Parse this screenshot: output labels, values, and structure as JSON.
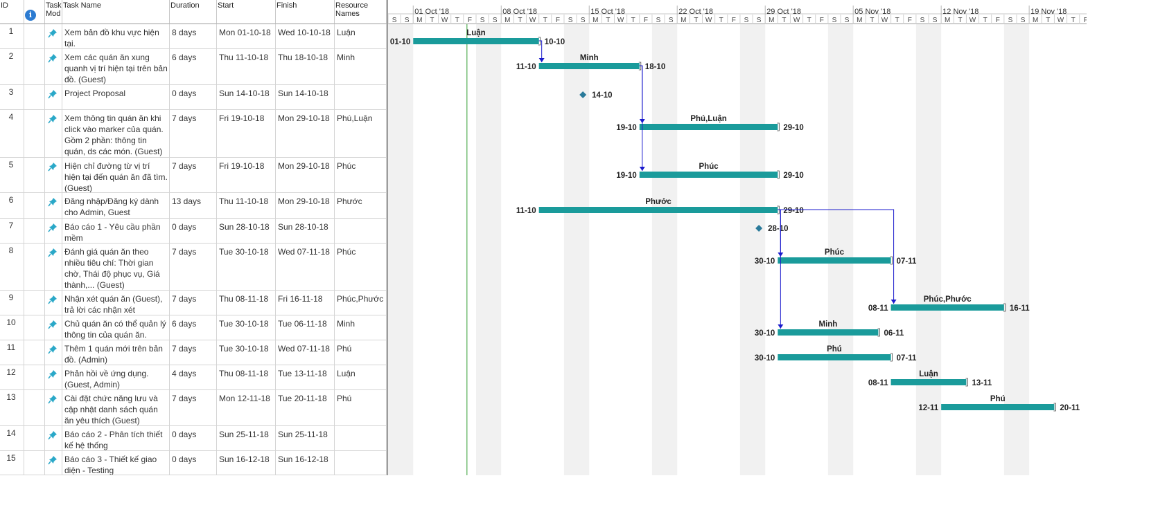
{
  "columns": {
    "id": "ID",
    "task_mode": "Task Mod",
    "task_name": "Task Name",
    "duration": "Duration",
    "start": "Start",
    "finish": "Finish",
    "resource_names": "Resource Names"
  },
  "timeline": {
    "weeks": [
      "01 Oct '18",
      "08 Oct '18",
      "15 Oct '18",
      "22 Oct '18",
      "29 Oct '18",
      "05 Nov '18",
      "12 Nov '18",
      "19 Nov '18"
    ],
    "day_letters": [
      "S",
      "S",
      "M",
      "T",
      "W",
      "T",
      "F",
      "S",
      "S",
      "M",
      "T",
      "W",
      "T",
      "F",
      "S",
      "S",
      "M",
      "T",
      "W",
      "T",
      "F",
      "S",
      "S",
      "M",
      "T",
      "W",
      "T",
      "F",
      "S",
      "S",
      "M",
      "T",
      "W",
      "T",
      "F",
      "S",
      "S",
      "M",
      "T",
      "W",
      "T",
      "F",
      "S",
      "S",
      "M",
      "T",
      "W",
      "T",
      "F",
      "S",
      "S",
      "M",
      "T",
      "W",
      "T",
      "F"
    ]
  },
  "tasks": [
    {
      "id": "1",
      "name": "Xem bản đồ khu vực hiện tại.",
      "duration": "8 days",
      "start": "Mon 01-10-18",
      "finish": "Wed 10-10-18",
      "resources": "Luận",
      "type": "bar",
      "bar_start": "2018-10-01",
      "bar_end": "2018-10-10",
      "label_start": "01-10",
      "label_end": "10-10"
    },
    {
      "id": "2",
      "name": "Xem các quán ăn xung quanh vị trí hiện tại trên bản đồ. (Guest)",
      "duration": "6 days",
      "start": "Thu 11-10-18",
      "finish": "Thu 18-10-18",
      "resources": "Minh",
      "type": "bar",
      "bar_start": "2018-10-11",
      "bar_end": "2018-10-18",
      "label_start": "11-10",
      "label_end": "18-10"
    },
    {
      "id": "3",
      "name": "Project Proposal",
      "duration": "0 days",
      "start": "Sun 14-10-18",
      "finish": "Sun 14-10-18",
      "resources": "",
      "type": "milestone",
      "bar_start": "2018-10-14",
      "bar_end": "2018-10-14",
      "label_start": "",
      "label_end": "14-10"
    },
    {
      "id": "4",
      "name": "Xem thông tin quán ăn khi click vào marker của quán. Gồm 2 phần: thông tin quán, ds các món. (Guest)",
      "duration": "7 days",
      "start": "Fri 19-10-18",
      "finish": "Mon 29-10-18",
      "resources": "Phú,Luận",
      "type": "bar",
      "bar_start": "2018-10-19",
      "bar_end": "2018-10-29",
      "label_start": "19-10",
      "label_end": "29-10"
    },
    {
      "id": "5",
      "name": "Hiện chỉ đường từ vị trí hiện tại đến quán ăn đã tìm. (Guest)",
      "duration": "7 days",
      "start": "Fri 19-10-18",
      "finish": "Mon 29-10-18",
      "resources": "Phúc",
      "type": "bar",
      "bar_start": "2018-10-19",
      "bar_end": "2018-10-29",
      "label_start": "19-10",
      "label_end": "29-10"
    },
    {
      "id": "6",
      "name": "Đăng nhập/Đăng ký dành cho Admin, Guest",
      "duration": "13 days",
      "start": "Thu 11-10-18",
      "finish": "Mon 29-10-18",
      "resources": "Phước",
      "type": "bar",
      "bar_start": "2018-10-11",
      "bar_end": "2018-10-29",
      "label_start": "11-10",
      "label_end": "29-10"
    },
    {
      "id": "7",
      "name": "Báo cáo 1 - Yêu cầu phần mềm",
      "duration": "0 days",
      "start": "Sun 28-10-18",
      "finish": "Sun 28-10-18",
      "resources": "",
      "type": "milestone",
      "bar_start": "2018-10-28",
      "bar_end": "2018-10-28",
      "label_start": "",
      "label_end": "28-10"
    },
    {
      "id": "8",
      "name": "Đánh giá quán ăn theo nhiều tiêu chí: Thời gian chờ, Thái độ phục vụ, Giá thành,... (Guest)",
      "duration": "7 days",
      "start": "Tue 30-10-18",
      "finish": "Wed 07-11-18",
      "resources": "Phúc",
      "type": "bar",
      "bar_start": "2018-10-30",
      "bar_end": "2018-11-07",
      "label_start": "30-10",
      "label_end": "07-11"
    },
    {
      "id": "9",
      "name": "Nhận xét quán ăn (Guest), trả lời các nhận xét",
      "duration": "7 days",
      "start": "Thu 08-11-18",
      "finish": "Fri 16-11-18",
      "resources": "Phúc,Phước",
      "type": "bar",
      "bar_start": "2018-11-08",
      "bar_end": "2018-11-16",
      "label_start": "08-11",
      "label_end": "16-11"
    },
    {
      "id": "10",
      "name": "Chủ quán ăn có thể quản lý thông tin của quán ăn.",
      "duration": "6 days",
      "start": "Tue 30-10-18",
      "finish": "Tue 06-11-18",
      "resources": "Minh",
      "type": "bar",
      "bar_start": "2018-10-30",
      "bar_end": "2018-11-06",
      "label_start": "30-10",
      "label_end": "06-11"
    },
    {
      "id": "11",
      "name": "Thêm 1 quán mới trên bản đồ. (Admin)",
      "duration": "7 days",
      "start": "Tue 30-10-18",
      "finish": "Wed 07-11-18",
      "resources": "Phú",
      "type": "bar",
      "bar_start": "2018-10-30",
      "bar_end": "2018-11-07",
      "label_start": "30-10",
      "label_end": "07-11"
    },
    {
      "id": "12",
      "name": "Phản hồi về ứng dụng. (Guest, Admin)",
      "duration": "4 days",
      "start": "Thu 08-11-18",
      "finish": "Tue 13-11-18",
      "resources": "Luận",
      "type": "bar",
      "bar_start": "2018-11-08",
      "bar_end": "2018-11-13",
      "label_start": "08-11",
      "label_end": "13-11"
    },
    {
      "id": "13",
      "name": "Cài đặt chức năng lưu và cập nhật danh sách quán ăn yêu thích (Guest)",
      "duration": "7 days",
      "start": "Mon 12-11-18",
      "finish": "Tue 20-11-18",
      "resources": "Phú",
      "type": "bar",
      "bar_start": "2018-11-12",
      "bar_end": "2018-11-20",
      "label_start": "12-11",
      "label_end": "20-11"
    },
    {
      "id": "14",
      "name": "Báo cáo 2 - Phân tích thiết kế hệ thống",
      "duration": "0 days",
      "start": "Sun 25-11-18",
      "finish": "Sun 25-11-18",
      "resources": "",
      "type": "none",
      "bar_start": "",
      "bar_end": "",
      "label_start": "",
      "label_end": ""
    },
    {
      "id": "15",
      "name": "Báo cáo 3 - Thiết kế giao diện - Testing",
      "duration": "0 days",
      "start": "Sun 16-12-18",
      "finish": "Sun 16-12-18",
      "resources": "",
      "type": "none",
      "bar_start": "",
      "bar_end": "",
      "label_start": "",
      "label_end": ""
    }
  ],
  "dependencies": [
    {
      "from": "1",
      "to": "2"
    },
    {
      "from": "2",
      "to": "4"
    },
    {
      "from": "2",
      "to": "5"
    },
    {
      "from": "6",
      "to": "8"
    },
    {
      "from": "6",
      "to": "10"
    },
    {
      "from": "6",
      "to": "9"
    }
  ],
  "colors": {
    "bar": "#1a9b9b",
    "milestone": "#2a7a9a",
    "link": "#1a1acc",
    "weekend": "#f1f1f1",
    "status_date_line": "#2e9b2e"
  },
  "status_date": "2018-10-05",
  "icons": {
    "task_mode": "pin-icon",
    "indicator": "info-icon"
  }
}
